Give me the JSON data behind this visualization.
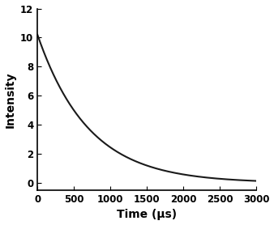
{
  "title": "",
  "xlabel": "Time (μs)",
  "ylabel": "Intensity",
  "xlim": [
    0,
    3000
  ],
  "ylim": [
    -0.5,
    12
  ],
  "xticks": [
    0,
    500,
    1000,
    1500,
    2000,
    2500,
    3000
  ],
  "yticks": [
    0,
    2,
    4,
    6,
    8,
    10,
    12
  ],
  "I0": 10.2,
  "tau": 700,
  "line_color": "#1a1a1a",
  "line_width": 1.5,
  "background_color": "#ffffff",
  "xlabel_fontsize": 10,
  "ylabel_fontsize": 10,
  "tick_fontsize": 8.5
}
